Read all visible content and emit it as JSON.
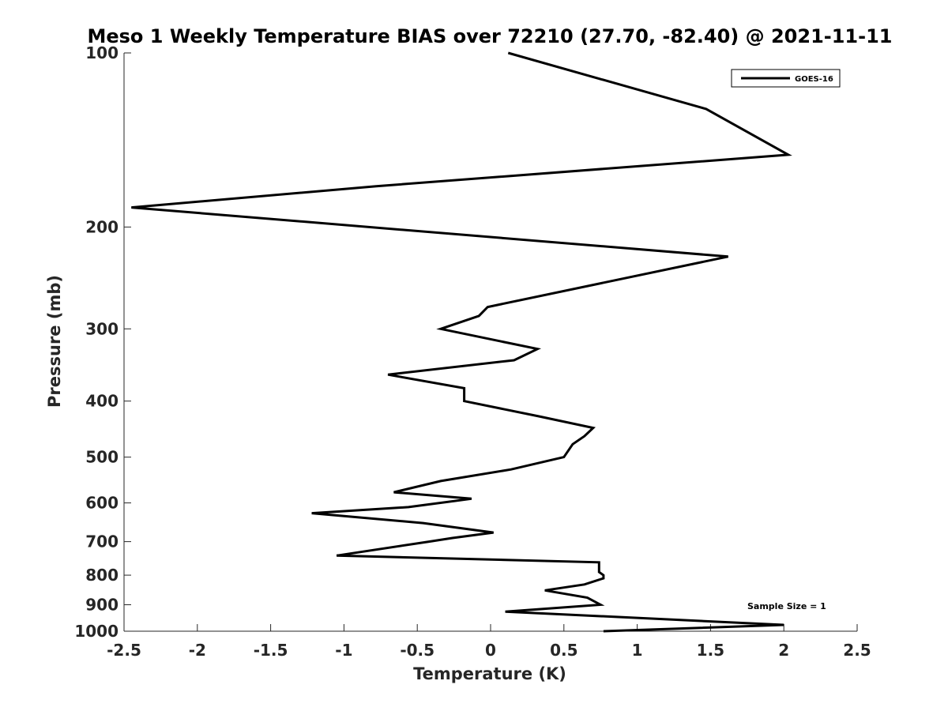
{
  "chart_data": {
    "type": "line",
    "title": "Meso 1 Weekly Temperature BIAS over 72210 (27.70, -82.40) @ 2021-11-11",
    "xlabel": "Temperature (K)",
    "ylabel": "Pressure (mb)",
    "xlim": [
      -2.5,
      2.5
    ],
    "ylim": [
      100,
      1000
    ],
    "y_scale": "log",
    "y_reversed": true,
    "x_ticks": [
      -2.5,
      -2,
      -1.5,
      -1,
      -0.5,
      0,
      0.5,
      1,
      1.5,
      2,
      2.5
    ],
    "x_tick_labels": [
      "-2.5",
      "-2",
      "-1.5",
      "-1",
      "-0.5",
      "0",
      "0.5",
      "1",
      "1.5",
      "2",
      "2.5"
    ],
    "y_ticks": [
      100,
      200,
      300,
      400,
      500,
      600,
      700,
      800,
      900,
      1000
    ],
    "y_tick_labels": [
      "100",
      "200",
      "300",
      "400",
      "500",
      "600",
      "700",
      "800",
      "900",
      "1000"
    ],
    "grid": false,
    "legend_position": "top-right",
    "annotation": "Sample Size = 1",
    "series": [
      {
        "name": "GOES-16",
        "color": "#000000",
        "points": [
          {
            "x": 0.12,
            "p": 100
          },
          {
            "x": 1.47,
            "p": 125
          },
          {
            "x": 2.03,
            "p": 150
          },
          {
            "x": -0.78,
            "p": 170
          },
          {
            "x": -2.45,
            "p": 185
          },
          {
            "x": 1.62,
            "p": 225
          },
          {
            "x": -0.02,
            "p": 275
          },
          {
            "x": -0.08,
            "p": 285
          },
          {
            "x": -0.34,
            "p": 300
          },
          {
            "x": 0.32,
            "p": 325
          },
          {
            "x": 0.16,
            "p": 340
          },
          {
            "x": -0.7,
            "p": 360
          },
          {
            "x": -0.18,
            "p": 380
          },
          {
            "x": -0.18,
            "p": 400
          },
          {
            "x": 0.33,
            "p": 425
          },
          {
            "x": 0.7,
            "p": 445
          },
          {
            "x": 0.64,
            "p": 460
          },
          {
            "x": 0.56,
            "p": 475
          },
          {
            "x": 0.5,
            "p": 500
          },
          {
            "x": 0.14,
            "p": 525
          },
          {
            "x": -0.34,
            "p": 550
          },
          {
            "x": -0.66,
            "p": 575
          },
          {
            "x": -0.13,
            "p": 590
          },
          {
            "x": -0.56,
            "p": 610
          },
          {
            "x": -1.22,
            "p": 625
          },
          {
            "x": -0.46,
            "p": 650
          },
          {
            "x": 0.02,
            "p": 675
          },
          {
            "x": -0.26,
            "p": 690
          },
          {
            "x": -0.42,
            "p": 700
          },
          {
            "x": -1.05,
            "p": 740
          },
          {
            "x": 0.74,
            "p": 760
          },
          {
            "x": 0.74,
            "p": 790
          },
          {
            "x": 0.77,
            "p": 800
          },
          {
            "x": 0.77,
            "p": 810
          },
          {
            "x": 0.64,
            "p": 830
          },
          {
            "x": 0.37,
            "p": 850
          },
          {
            "x": 0.66,
            "p": 875
          },
          {
            "x": 0.75,
            "p": 900
          },
          {
            "x": 0.1,
            "p": 925
          },
          {
            "x": 2.0,
            "p": 975
          },
          {
            "x": 0.77,
            "p": 1000
          }
        ]
      }
    ]
  }
}
